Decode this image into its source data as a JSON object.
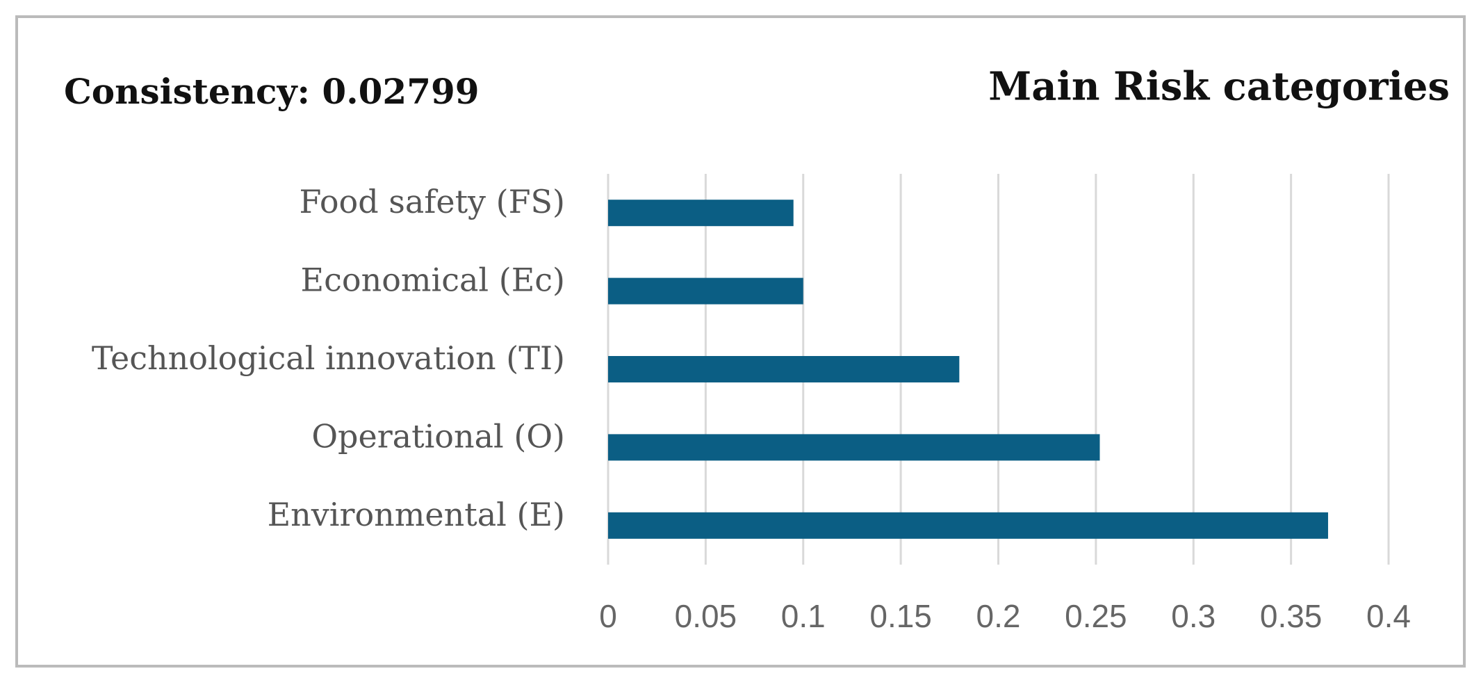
{
  "chart_data": {
    "type": "bar",
    "orientation": "horizontal",
    "title": "Main Risk categories",
    "annotation": "Consistency: 0.02799",
    "categories": [
      "Food safety (FS)",
      "Economical (Ec)",
      "Technological innovation (TI)",
      "Operational (O)",
      "Environmental (E)"
    ],
    "values": [
      0.095,
      0.1,
      0.18,
      0.252,
      0.369
    ],
    "color": "#0b5e84",
    "xlim": [
      0,
      0.4
    ],
    "xticks": [
      0,
      0.05,
      0.1,
      0.15,
      0.2,
      0.25,
      0.3,
      0.35,
      0.4
    ],
    "grid": true
  }
}
